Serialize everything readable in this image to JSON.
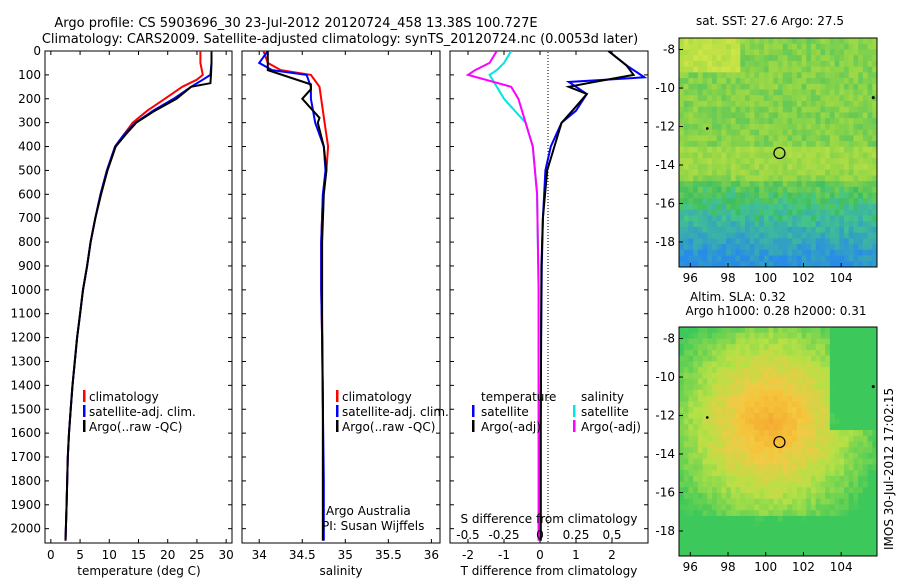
{
  "header": {
    "line1": "Argo profile: CS 5903696_30 23-Jul-2012 20120724_458 13.38S 100.727E",
    "line2": "Climatology: CARS2009. Satellite-adjusted climatology: synTS_20120724.nc (0.0053d later)"
  },
  "colors": {
    "climatology": "#ff0000",
    "satellite": "#0000ff",
    "argo": "#000000",
    "sal_satellite": "#00e5e5",
    "sal_argo": "#ff00ff"
  },
  "chart_data": [
    {
      "type": "line",
      "xlabel": "temperature (deg C)",
      "ylabel": "",
      "xlim": [
        -1,
        31
      ],
      "ylim": [
        2060,
        0
      ],
      "xticks": [
        0,
        5,
        10,
        15,
        20,
        25,
        30
      ],
      "yticks": [
        0,
        100,
        200,
        300,
        400,
        500,
        600,
        700,
        800,
        900,
        1000,
        1100,
        1200,
        1300,
        1400,
        1500,
        1600,
        1700,
        1800,
        1900,
        2000
      ],
      "legend": {
        "placement": "bottom-center",
        "entries": [
          "climatology",
          "satellite-adj. clim.",
          "Argo(..raw -QC)"
        ]
      },
      "series": [
        {
          "name": "climatology",
          "x": [
            25.6,
            25.6,
            26.0,
            25.0,
            22.5,
            19.5,
            16.5,
            14.0,
            12.5,
            11.0,
            9.6,
            8.5,
            7.6,
            6.8,
            6.2,
            5.5,
            5.0,
            4.5,
            4.1,
            3.7,
            3.4,
            3.1,
            2.9,
            2.7,
            2.5
          ],
          "y": [
            0,
            50,
            100,
            120,
            150,
            200,
            250,
            300,
            350,
            400,
            500,
            600,
            700,
            800,
            900,
            1000,
            1100,
            1200,
            1300,
            1400,
            1500,
            1600,
            1700,
            1900,
            2050
          ]
        },
        {
          "name": "satellite-adj. clim.",
          "x": [
            27.5,
            27.5,
            27.3,
            26.0,
            24.0,
            21.0,
            17.5,
            14.5,
            12.5,
            11.0,
            9.6,
            8.5,
            7.6,
            6.8,
            6.2,
            5.5,
            5.0,
            4.5,
            4.1,
            3.7,
            3.4,
            3.1,
            2.9,
            2.7,
            2.5
          ],
          "y": [
            0,
            50,
            100,
            120,
            150,
            200,
            250,
            300,
            350,
            400,
            500,
            600,
            700,
            800,
            900,
            1000,
            1100,
            1200,
            1300,
            1400,
            1500,
            1600,
            1700,
            1900,
            2050
          ]
        },
        {
          "name": "Argo(..raw -QC)",
          "x": [
            27.5,
            27.5,
            27.4,
            27.3,
            24.0,
            21.5,
            17.8,
            14.6,
            12.8,
            11.1,
            9.7,
            8.6,
            7.6,
            6.8,
            6.2,
            5.5,
            5.0,
            4.5,
            4.1,
            3.7,
            3.4,
            3.1,
            2.9,
            2.7,
            2.5
          ],
          "y": [
            5,
            50,
            100,
            135,
            150,
            200,
            250,
            300,
            350,
            400,
            500,
            600,
            700,
            800,
            900,
            1000,
            1100,
            1200,
            1300,
            1400,
            1500,
            1600,
            1700,
            1900,
            2050
          ]
        }
      ]
    },
    {
      "type": "line",
      "xlabel": "salinity",
      "xlim": [
        33.8,
        36.1
      ],
      "ylim": [
        2060,
        0
      ],
      "xticks": [
        34,
        34.5,
        35,
        35.5,
        36
      ],
      "legend": {
        "placement": "bottom-center",
        "entries": [
          "climatology",
          "satellite-adj. clim.",
          "Argo(..raw -QC)"
        ]
      },
      "annotations": [
        "Argo Australia",
        "PI: Susan Wijffels"
      ],
      "series": [
        {
          "name": "climatology",
          "x": [
            34.05,
            34.1,
            34.25,
            34.6,
            34.7,
            34.72,
            34.76,
            34.8,
            34.78,
            34.74,
            34.72,
            34.72,
            34.73,
            34.74,
            34.74,
            34.74
          ],
          "y": [
            0,
            50,
            80,
            100,
            150,
            200,
            300,
            400,
            500,
            600,
            800,
            1000,
            1200,
            1500,
            1800,
            2050
          ]
        },
        {
          "name": "satellite-adj. clim.",
          "x": [
            34.1,
            34.0,
            34.15,
            34.55,
            34.6,
            34.6,
            34.65,
            34.75,
            34.77,
            34.74,
            34.72,
            34.72,
            34.73,
            34.74,
            34.75,
            34.75
          ],
          "y": [
            0,
            50,
            80,
            100,
            150,
            200,
            300,
            400,
            500,
            600,
            800,
            1000,
            1200,
            1500,
            1800,
            2050
          ]
        },
        {
          "name": "Argo(..raw -QC)",
          "x": [
            34.1,
            34.1,
            34.1,
            34.6,
            34.6,
            34.5,
            34.7,
            34.68,
            34.75,
            34.78,
            34.75,
            34.73,
            34.73,
            34.74,
            34.74,
            34.74
          ],
          "y": [
            0,
            60,
            80,
            140,
            160,
            200,
            280,
            300,
            400,
            500,
            600,
            800,
            1100,
            1500,
            1800,
            2050
          ]
        }
      ]
    },
    {
      "type": "line",
      "xlabel": "T difference from climatology",
      "xlabel_top": "S difference from climatology",
      "xlim": [
        -2.5,
        3.0
      ],
      "ylim": [
        2060,
        0
      ],
      "xticks": [
        -2,
        -1,
        0,
        1,
        2
      ],
      "xticks_top": [
        -0.5,
        -0.25,
        0,
        0.25,
        0.5
      ],
      "legend": {
        "placement": "bottom-center",
        "entries": [
          "temperature",
          "satellite",
          "Argo(-adj)",
          "salinity",
          "satellite",
          "Argo(-adj)"
        ]
      },
      "series": [
        {
          "name": "temperature satellite",
          "x": [
            1.9,
            2.4,
            2.7,
            2.9,
            0.8,
            1.3,
            1.0,
            0.6,
            0.3,
            0.15,
            0.08,
            0.05,
            0.03,
            0.02,
            0.02
          ],
          "y": [
            0,
            60,
            90,
            110,
            130,
            180,
            250,
            300,
            400,
            500,
            700,
            900,
            1200,
            1600,
            2050
          ]
        },
        {
          "name": "temperature Argo(-adj)",
          "x": [
            1.9,
            2.4,
            2.6,
            1.5,
            0.8,
            1.3,
            0.9,
            0.6,
            0.4,
            0.2,
            0.08,
            0.04,
            0.03,
            0.02,
            0.02
          ],
          "y": [
            0,
            60,
            100,
            130,
            150,
            180,
            250,
            300,
            400,
            500,
            700,
            900,
            1200,
            1600,
            2050
          ]
        },
        {
          "name": "salinity satellite",
          "x": [
            -0.2,
            -0.25,
            -0.3,
            -0.35,
            -0.3,
            -0.25,
            -0.1,
            -0.05,
            -0.02,
            -0.01,
            -0.01
          ],
          "y": [
            0,
            50,
            80,
            100,
            150,
            200,
            300,
            400,
            600,
            1000,
            2050
          ]
        },
        {
          "name": "salinity Argo(-adj)",
          "x": [
            -0.3,
            -0.35,
            -0.45,
            -0.5,
            -0.2,
            -0.15,
            -0.1,
            -0.05,
            -0.02,
            -0.01,
            -0.01
          ],
          "y": [
            0,
            50,
            80,
            100,
            150,
            200,
            300,
            400,
            600,
            1000,
            2050
          ]
        }
      ]
    },
    {
      "type": "heatmap",
      "title": "sat. SST: 27.6  Argo: 27.5",
      "xlim": [
        95.4,
        105.9
      ],
      "ylim": [
        -19.3,
        -7.4
      ],
      "xticks": [
        96,
        98,
        100,
        102,
        104
      ],
      "yticks": [
        -8,
        -10,
        -12,
        -14,
        -16,
        -18
      ],
      "marker": {
        "lon": 100.727,
        "lat": -13.38
      }
    },
    {
      "type": "heatmap",
      "title": "Altim. SLA: 0.32",
      "subtitle": "Argo h1000: 0.28 h2000: 0.31",
      "xlim": [
        95.4,
        105.9
      ],
      "ylim": [
        -19.3,
        -7.4
      ],
      "xticks": [
        96,
        98,
        100,
        102,
        104
      ],
      "yticks": [
        -8,
        -10,
        -12,
        -14,
        -16,
        -18
      ],
      "marker": {
        "lon": 100.727,
        "lat": -13.38
      }
    }
  ],
  "side_label": "IMOS 30-Jul-2012 17:02:15"
}
